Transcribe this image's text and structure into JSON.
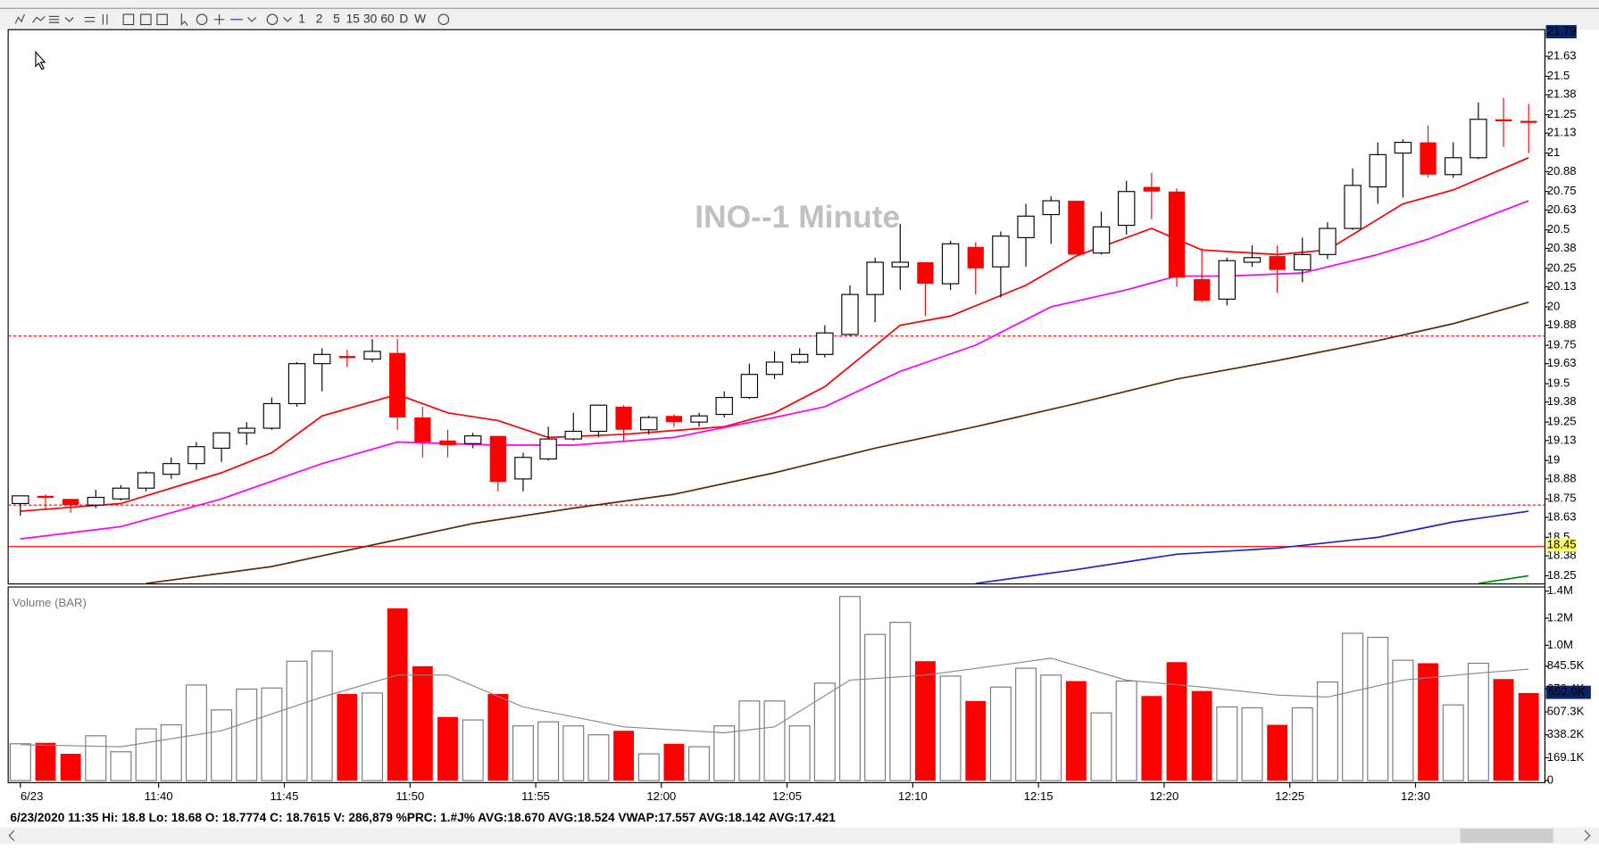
{
  "toolbar": {
    "buttons": [
      "1",
      "2",
      "5",
      "15",
      "30",
      "60",
      "D",
      "W"
    ]
  },
  "status_bar": "6/23/2020 11:35  Hi: 18.8  Lo: 18.68  O: 18.7774  C: 18.7615  V: 286,879 %PRC: 1.#J% AVG:18.670 AVG:18.524 VWAP:17.557 AVG:18.142 AVG:17.421",
  "chart_data": [
    {
      "type": "candlestick",
      "title": "INO--1 Minute",
      "up_color": "#ffffff",
      "down_color": "#ff0000",
      "open": [
        18.72,
        18.77,
        18.75,
        18.71,
        18.75,
        18.82,
        18.91,
        18.98,
        19.08,
        19.18,
        19.21,
        19.37,
        19.63,
        19.68,
        19.66,
        19.7,
        19.28,
        19.13,
        19.11,
        19.16,
        18.88,
        19.01,
        19.14,
        19.19,
        19.35,
        19.2,
        19.29,
        19.25,
        19.3,
        19.41,
        19.56,
        19.64,
        19.69,
        19.82,
        20.08,
        20.26,
        20.29,
        20.15,
        20.39,
        20.26,
        20.45,
        20.6,
        20.69,
        20.35,
        20.53,
        20.78,
        20.75,
        20.18,
        20.05,
        20.29,
        20.33,
        20.24,
        20.34,
        20.51,
        20.78,
        21.0,
        21.07,
        20.86,
        20.97,
        21.22,
        21.21
      ],
      "high": [
        18.77,
        18.78,
        18.75,
        18.81,
        18.84,
        18.93,
        19.02,
        19.12,
        19.18,
        19.25,
        19.41,
        19.64,
        19.73,
        19.72,
        19.79,
        19.79,
        19.35,
        19.2,
        19.18,
        19.16,
        19.05,
        19.22,
        19.31,
        19.36,
        19.36,
        19.29,
        19.3,
        19.31,
        19.45,
        19.63,
        19.71,
        19.73,
        19.88,
        20.14,
        20.32,
        20.54,
        20.29,
        20.43,
        20.42,
        20.49,
        20.67,
        20.72,
        20.69,
        20.62,
        20.82,
        20.87,
        20.77,
        20.38,
        20.32,
        20.4,
        20.4,
        20.45,
        20.55,
        20.9,
        21.07,
        21.09,
        21.18,
        21.07,
        21.33,
        21.36,
        21.32
      ],
      "low": [
        18.64,
        18.68,
        18.66,
        18.69,
        18.74,
        18.8,
        18.88,
        18.94,
        18.99,
        19.1,
        19.2,
        19.35,
        19.45,
        19.61,
        19.64,
        19.2,
        19.02,
        19.02,
        19.08,
        18.8,
        18.8,
        19.0,
        19.13,
        19.15,
        19.13,
        19.17,
        19.22,
        19.22,
        19.28,
        19.4,
        19.53,
        19.63,
        19.67,
        19.81,
        19.9,
        20.11,
        19.94,
        20.11,
        20.08,
        20.06,
        20.26,
        20.41,
        20.34,
        20.34,
        20.47,
        20.57,
        20.13,
        20.03,
        20.01,
        20.26,
        20.09,
        20.16,
        20.31,
        20.5,
        20.67,
        20.71,
        20.84,
        20.84,
        20.96,
        21.04,
        21.0
      ],
      "close": [
        18.77,
        18.76,
        18.71,
        18.76,
        18.82,
        18.92,
        18.98,
        19.09,
        19.18,
        19.21,
        19.37,
        19.63,
        19.69,
        19.67,
        19.71,
        19.28,
        19.12,
        19.1,
        19.16,
        18.86,
        19.02,
        19.14,
        19.19,
        19.36,
        19.2,
        19.28,
        19.25,
        19.29,
        19.41,
        19.56,
        19.64,
        19.69,
        19.83,
        20.08,
        20.29,
        20.29,
        20.15,
        20.41,
        20.25,
        20.46,
        20.59,
        20.69,
        20.34,
        20.52,
        20.75,
        20.75,
        20.19,
        20.04,
        20.3,
        20.32,
        20.24,
        20.34,
        20.51,
        20.79,
        20.99,
        21.07,
        20.86,
        20.97,
        21.22,
        21.21,
        21.2
      ],
      "overlays": [
        {
          "color": "#ff0000",
          "x": [
            0,
            4,
            8,
            10,
            12,
            15,
            17,
            19,
            21,
            24,
            28,
            30,
            32,
            35,
            37,
            40,
            42,
            45,
            47,
            50,
            52,
            55,
            57,
            60
          ],
          "values": [
            18.67,
            18.72,
            18.92,
            19.05,
            19.29,
            19.43,
            19.31,
            19.26,
            19.15,
            19.17,
            19.22,
            19.31,
            19.48,
            19.88,
            19.94,
            20.14,
            20.33,
            20.51,
            20.37,
            20.34,
            20.37,
            20.67,
            20.76,
            20.97
          ]
        },
        {
          "color": "#ff00ff",
          "x": [
            0,
            4,
            8,
            12,
            15,
            19,
            22,
            26,
            30,
            32,
            35,
            38,
            41,
            44,
            46,
            48,
            51,
            54,
            56,
            60
          ],
          "values": [
            18.49,
            18.57,
            18.75,
            18.98,
            19.12,
            19.1,
            19.1,
            19.15,
            19.28,
            19.35,
            19.58,
            19.75,
            20.0,
            20.11,
            20.2,
            20.2,
            20.22,
            20.34,
            20.44,
            20.69
          ]
        },
        {
          "color": "#5a2d0c",
          "x": [
            5,
            10,
            14,
            18,
            22,
            26,
            30,
            34,
            38,
            42,
            46,
            50,
            54,
            57,
            60
          ],
          "values": [
            18.2,
            18.31,
            18.45,
            18.59,
            18.69,
            18.78,
            18.92,
            19.08,
            19.22,
            19.37,
            19.53,
            19.65,
            19.78,
            19.89,
            20.03
          ]
        },
        {
          "color": "#2222cc",
          "x": [
            38,
            42,
            46,
            50,
            54,
            57,
            60
          ],
          "values": [
            18.2,
            18.29,
            18.39,
            18.43,
            18.5,
            18.6,
            18.67
          ]
        },
        {
          "color": "#008800",
          "x": [
            58,
            60
          ],
          "values": [
            18.2,
            18.25
          ]
        }
      ],
      "hlines": [
        {
          "value": 19.81,
          "style": "dashed"
        },
        {
          "value": 18.71,
          "style": "dashed"
        },
        {
          "value": 18.44,
          "style": "solid"
        }
      ],
      "hline_color": "#ff0000",
      "price_markers": [
        {
          "value": 21.79,
          "bg": "#0a246a",
          "fg": "#ffffff"
        },
        {
          "value": 18.45,
          "bg": "#ffff66",
          "fg": "#000000"
        }
      ],
      "ylim": [
        18.21,
        21.79
      ],
      "yticks": [
        21.63,
        21.5,
        21.38,
        21.25,
        21.13,
        21,
        20.88,
        20.75,
        20.63,
        20.5,
        20.38,
        20.25,
        20.13,
        20,
        19.88,
        19.75,
        19.63,
        19.5,
        19.38,
        19.25,
        19.13,
        19,
        18.88,
        18.75,
        18.63,
        18.5,
        18.38,
        18.25
      ]
    },
    {
      "type": "bar",
      "title": "Volume (BAR)",
      "color": "#ffffff",
      "down_color": "#ff0000",
      "values": [
        272000,
        279000,
        198000,
        331000,
        213000,
        382000,
        412000,
        706000,
        522000,
        676000,
        684000,
        882000,
        956000,
        640000,
        647000,
        1272000,
        845000,
        470000,
        448000,
        640000,
        404000,
        434000,
        404000,
        338000,
        368000,
        198000,
        272000,
        250000,
        404000,
        588000,
        588000,
        404000,
        720000,
        1360000,
        1080000,
        1169000,
        882000,
        772000,
        588000,
        691000,
        830000,
        779000,
        735000,
        500000,
        735000,
        625000,
        875000,
        662000,
        544000,
        537000,
        412000,
        537000,
        728000,
        1088000,
        1058000,
        889000,
        867000,
        559000,
        867000,
        750000,
        647000
      ],
      "average": {
        "color": "#888888",
        "x": [
          0,
          4,
          8,
          12,
          15,
          17,
          20,
          24,
          28,
          30,
          33,
          36,
          39,
          41,
          44,
          47,
          50,
          52,
          55,
          58,
          60
        ],
        "values": [
          265000,
          250000,
          368000,
          617000,
          779000,
          779000,
          544000,
          397000,
          353000,
          397000,
          742000,
          779000,
          853000,
          904000,
          742000,
          691000,
          632000,
          617000,
          742000,
          794000,
          823000
        ]
      },
      "marker": {
        "value": 652000,
        "label": "652.0K"
      },
      "ylim": [
        0,
        1400000
      ],
      "yticks": [
        {
          "value": 1400000,
          "label": "1.4M"
        },
        {
          "value": 1200000,
          "label": "1.2M"
        },
        {
          "value": 1000000,
          "label": "1.0M"
        },
        {
          "value": 845500,
          "label": "845.5K"
        },
        {
          "value": 676400,
          "label": "676.4K"
        },
        {
          "value": 507300,
          "label": "507.3K"
        },
        {
          "value": 338200,
          "label": "338.2K"
        },
        {
          "value": 169100,
          "label": "169.1K"
        },
        0
      ],
      "xticks": [
        {
          "value": 0,
          "label": "6/23"
        },
        {
          "value": 5.5,
          "label": "11:40"
        },
        {
          "value": 10.5,
          "label": "11:45"
        },
        {
          "value": 15.5,
          "label": "11:50"
        },
        {
          "value": 20.5,
          "label": "11:55"
        },
        {
          "value": 25.5,
          "label": "12:00"
        },
        {
          "value": 30.5,
          "label": "12:05"
        },
        {
          "value": 35.5,
          "label": "12:10"
        },
        {
          "value": 40.5,
          "label": "12:15"
        },
        {
          "value": 45.5,
          "label": "12:20"
        },
        {
          "value": 50.5,
          "label": "12:25"
        },
        {
          "value": 55.5,
          "label": "12:30"
        }
      ]
    }
  ]
}
